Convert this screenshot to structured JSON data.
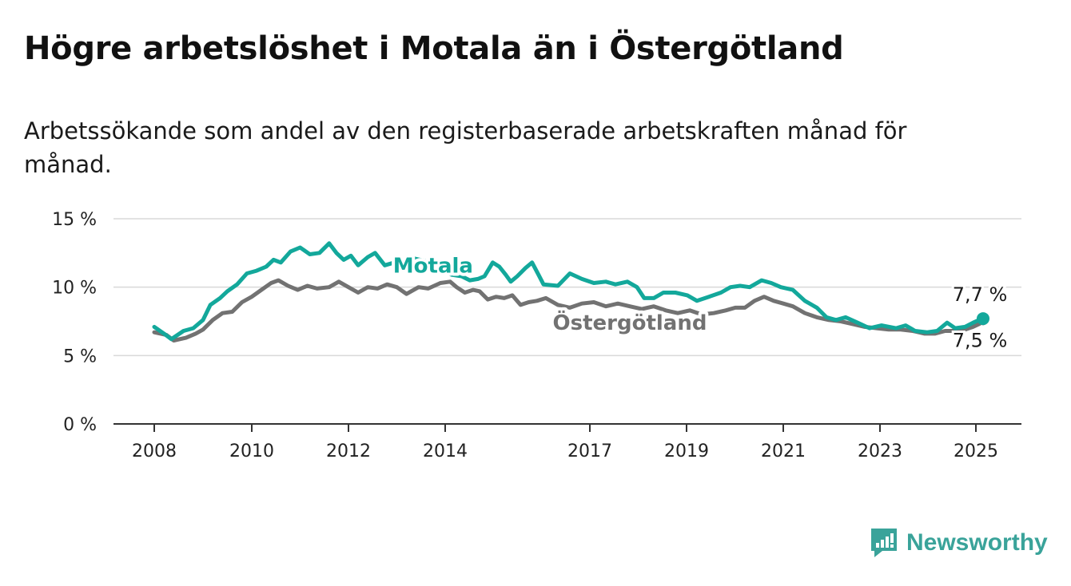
{
  "header": {
    "title": "Högre arbetslöshet i Motala än i Östergötland",
    "subtitle": "Arbetssökande som andel av den registerbaserade arbetskraften månad för månad."
  },
  "brand": {
    "name": "Newsworthy",
    "icon": "newsworthy-logo-icon",
    "color": "#3aa39a"
  },
  "chart_data": {
    "type": "line",
    "title": "Högre arbetslöshet i Motala än i Östergötland",
    "subtitle": "Arbetssökande som andel av den registerbaserade arbetskraften månad för månad.",
    "xlabel": "",
    "ylabel": "",
    "x_range": [
      2007.9,
      2025.7
    ],
    "ylim": [
      0,
      15
    ],
    "y_ticks": [
      0,
      5,
      10,
      15
    ],
    "y_tick_labels": [
      "0 %",
      "5 %",
      "10 %",
      "15 %"
    ],
    "x_ticks": [
      2008,
      2010,
      2012,
      2014,
      2017,
      2019,
      2021,
      2023,
      2025
    ],
    "x_tick_labels": [
      "2008",
      "2010",
      "2012",
      "2014",
      "2017",
      "2019",
      "2021",
      "2023",
      "2025"
    ],
    "grid": "horizontal",
    "legend": "inline labels",
    "series": [
      {
        "name": "Motala",
        "color": "#13a89b",
        "end_label": "7,7 %",
        "points": [
          [
            2008.0,
            7.1
          ],
          [
            2008.2,
            6.6
          ],
          [
            2008.35,
            6.2
          ],
          [
            2008.6,
            6.8
          ],
          [
            2008.8,
            7.0
          ],
          [
            2009.0,
            7.6
          ],
          [
            2009.15,
            8.7
          ],
          [
            2009.35,
            9.2
          ],
          [
            2009.5,
            9.7
          ],
          [
            2009.7,
            10.2
          ],
          [
            2009.9,
            11.0
          ],
          [
            2010.1,
            11.2
          ],
          [
            2010.3,
            11.5
          ],
          [
            2010.45,
            12.0
          ],
          [
            2010.6,
            11.8
          ],
          [
            2010.8,
            12.6
          ],
          [
            2011.0,
            12.9
          ],
          [
            2011.2,
            12.4
          ],
          [
            2011.4,
            12.5
          ],
          [
            2011.6,
            13.2
          ],
          [
            2011.75,
            12.5
          ],
          [
            2011.9,
            12.0
          ],
          [
            2012.05,
            12.3
          ],
          [
            2012.2,
            11.6
          ],
          [
            2012.4,
            12.2
          ],
          [
            2012.55,
            12.5
          ],
          [
            2012.75,
            11.6
          ],
          [
            2012.95,
            11.8
          ],
          [
            2013.15,
            11.4
          ],
          [
            2013.35,
            12.1
          ],
          [
            2013.6,
            11.9
          ],
          [
            2013.9,
            11.3
          ],
          [
            2014.2,
            10.9
          ],
          [
            2014.5,
            10.8
          ],
          [
            2014.75,
            10.5
          ],
          [
            2015.0,
            10.6
          ],
          [
            2015.2,
            10.8
          ],
          [
            2015.45,
            11.8
          ],
          [
            2015.65,
            11.5
          ],
          [
            2015.85,
            10.9
          ],
          [
            2016.0,
            10.4
          ],
          [
            2016.2,
            10.8
          ],
          [
            2016.45,
            11.4
          ],
          [
            2016.65,
            11.8
          ],
          [
            2016.85,
            10.9
          ],
          [
            2017.0,
            10.2
          ],
          [
            2017.3,
            10.1
          ],
          [
            2017.55,
            11.0
          ],
          [
            2017.8,
            10.6
          ],
          [
            2018.05,
            10.3
          ],
          [
            2018.3,
            10.4
          ],
          [
            2018.5,
            10.2
          ],
          [
            2018.75,
            10.4
          ],
          [
            2018.95,
            10.0
          ],
          [
            2019.1,
            9.2
          ],
          [
            2019.3,
            9.2
          ],
          [
            2019.5,
            9.6
          ],
          [
            2019.75,
            9.6
          ],
          [
            2020.0,
            9.4
          ],
          [
            2020.2,
            9.0
          ],
          [
            2020.45,
            9.3
          ],
          [
            2020.7,
            9.6
          ],
          [
            2020.9,
            10.0
          ],
          [
            2021.1,
            10.1
          ],
          [
            2021.3,
            10.0
          ],
          [
            2021.55,
            10.5
          ],
          [
            2021.75,
            10.3
          ],
          [
            2021.95,
            10.0
          ],
          [
            2022.2,
            9.8
          ],
          [
            2022.45,
            9.0
          ],
          [
            2022.7,
            8.5
          ],
          [
            2022.9,
            7.8
          ],
          [
            2023.1,
            7.6
          ],
          [
            2023.3,
            7.8
          ],
          [
            2023.55,
            7.4
          ],
          [
            2023.8,
            7.0
          ],
          [
            2024.05,
            7.2
          ],
          [
            2024.35,
            7.0
          ],
          [
            2024.55,
            7.2
          ],
          [
            2024.75,
            6.8
          ],
          [
            2025.0,
            6.7
          ],
          [
            2025.25,
            6.8
          ],
          [
            2025.5,
            7.4
          ],
          [
            2025.7,
            7.0
          ],
          [
            2025.95,
            7.1
          ],
          [
            2026.15,
            7.4
          ],
          [
            2026.3,
            7.6
          ],
          [
            2026.4,
            7.7
          ]
        ]
      },
      {
        "name": "Östergötland",
        "color": "#727272",
        "end_label": "7,5 %",
        "points": [
          [
            2008.0,
            6.7
          ],
          [
            2008.25,
            6.5
          ],
          [
            2008.4,
            6.1
          ],
          [
            2008.65,
            6.3
          ],
          [
            2008.85,
            6.6
          ],
          [
            2009.0,
            6.9
          ],
          [
            2009.2,
            7.6
          ],
          [
            2009.4,
            8.1
          ],
          [
            2009.6,
            8.2
          ],
          [
            2009.8,
            8.9
          ],
          [
            2010.0,
            9.3
          ],
          [
            2010.2,
            9.8
          ],
          [
            2010.4,
            10.3
          ],
          [
            2010.55,
            10.5
          ],
          [
            2010.75,
            10.1
          ],
          [
            2010.95,
            9.8
          ],
          [
            2011.15,
            10.1
          ],
          [
            2011.35,
            9.9
          ],
          [
            2011.6,
            10.0
          ],
          [
            2011.8,
            10.4
          ],
          [
            2012.0,
            10.0
          ],
          [
            2012.2,
            9.6
          ],
          [
            2012.4,
            10.0
          ],
          [
            2012.6,
            9.9
          ],
          [
            2012.8,
            10.2
          ],
          [
            2013.0,
            10.0
          ],
          [
            2013.2,
            9.5
          ],
          [
            2013.45,
            10.0
          ],
          [
            2013.65,
            9.9
          ],
          [
            2013.9,
            10.3
          ],
          [
            2014.15,
            10.4
          ],
          [
            2014.35,
            10.0
          ],
          [
            2014.6,
            9.6
          ],
          [
            2014.85,
            9.8
          ],
          [
            2015.05,
            9.7
          ],
          [
            2015.3,
            9.1
          ],
          [
            2015.55,
            9.3
          ],
          [
            2015.8,
            9.2
          ],
          [
            2016.05,
            9.4
          ],
          [
            2016.3,
            8.7
          ],
          [
            2016.55,
            8.9
          ],
          [
            2016.8,
            9.0
          ],
          [
            2017.05,
            9.2
          ],
          [
            2017.3,
            8.7
          ],
          [
            2017.55,
            8.5
          ],
          [
            2017.8,
            8.8
          ],
          [
            2018.05,
            8.9
          ],
          [
            2018.3,
            8.6
          ],
          [
            2018.55,
            8.8
          ],
          [
            2018.8,
            8.6
          ],
          [
            2019.05,
            8.4
          ],
          [
            2019.3,
            8.6
          ],
          [
            2019.55,
            8.3
          ],
          [
            2019.8,
            8.1
          ],
          [
            2020.05,
            8.3
          ],
          [
            2020.3,
            8.0
          ],
          [
            2020.55,
            8.1
          ],
          [
            2020.8,
            8.3
          ],
          [
            2021.0,
            8.5
          ],
          [
            2021.2,
            8.5
          ],
          [
            2021.4,
            9.0
          ],
          [
            2021.6,
            9.3
          ],
          [
            2021.8,
            9.0
          ],
          [
            2022.0,
            8.8
          ],
          [
            2022.2,
            8.6
          ],
          [
            2022.45,
            8.1
          ],
          [
            2022.7,
            7.8
          ],
          [
            2022.95,
            7.6
          ],
          [
            2023.2,
            7.5
          ],
          [
            2023.45,
            7.3
          ],
          [
            2023.7,
            7.1
          ],
          [
            2023.95,
            7.0
          ],
          [
            2024.2,
            6.9
          ],
          [
            2024.45,
            6.9
          ],
          [
            2024.7,
            6.8
          ],
          [
            2024.95,
            6.6
          ],
          [
            2025.2,
            6.6
          ],
          [
            2025.45,
            6.8
          ],
          [
            2025.7,
            6.8
          ],
          [
            2025.95,
            6.9
          ],
          [
            2026.15,
            7.1
          ],
          [
            2026.3,
            7.3
          ],
          [
            2026.4,
            7.5
          ]
        ]
      }
    ],
    "inline_labels": [
      {
        "series": "Motala",
        "text": "Motala",
        "x": 2013.75,
        "y": 11.6
      },
      {
        "series": "Östergötland",
        "text": "Östergötland",
        "x": 2018.8,
        "y": 7.4
      }
    ]
  }
}
